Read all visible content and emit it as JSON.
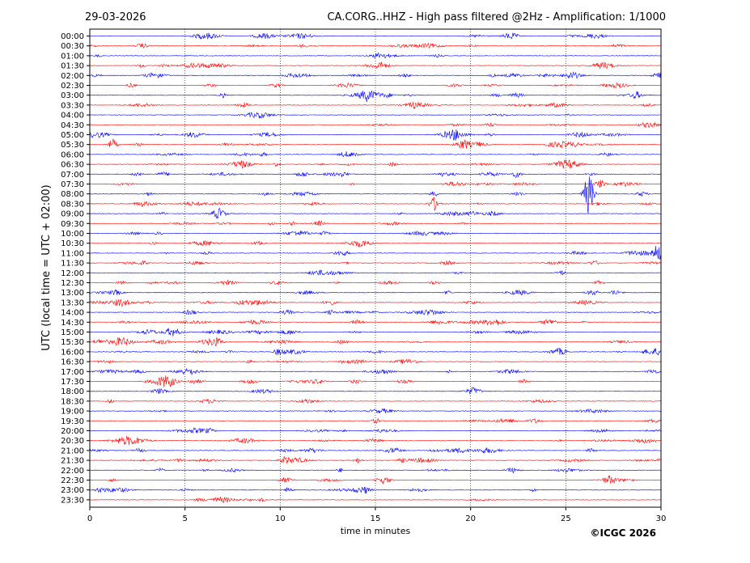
{
  "header": {
    "date": "29-03-2026",
    "title": "CA.CORG..HHZ - High pass filtered @2Hz - Amplification: 1/1000"
  },
  "copyright": "©ICGC 2026",
  "chart_data": {
    "type": "line",
    "title": "CA.CORG..HHZ - High pass filtered @2Hz - Amplification: 1/1000",
    "xlabel": "time in minutes",
    "ylabel": "UTC (local time = UTC + 02:00)",
    "xlim": [
      0,
      30
    ],
    "x_ticks": [
      "0",
      "5",
      "10",
      "15",
      "20",
      "25",
      "30"
    ],
    "rows": [
      "00:00",
      "00:30",
      "01:00",
      "01:30",
      "02:00",
      "02:30",
      "03:00",
      "03:30",
      "04:00",
      "04:30",
      "05:00",
      "05:30",
      "06:00",
      "06:30",
      "07:00",
      "07:30",
      "08:00",
      "08:30",
      "09:00",
      "09:30",
      "10:00",
      "10:30",
      "11:00",
      "11:30",
      "12:00",
      "12:30",
      "13:00",
      "13:30",
      "14:00",
      "14:30",
      "15:00",
      "15:30",
      "16:00",
      "16:30",
      "17:00",
      "17:30",
      "18:00",
      "18:30",
      "19:00",
      "19:30",
      "20:00",
      "20:30",
      "21:00",
      "21:30",
      "22:00",
      "22:30",
      "23:00",
      "23:30"
    ],
    "row_colors": [
      "#0000ff",
      "#ff0000"
    ],
    "grid": "vertical dotted at 5-minute intervals",
    "events": [
      {
        "row": "05:30",
        "minute": 1.2,
        "amplitude": 0.9
      },
      {
        "row": "05:30",
        "minute": 19.7,
        "amplitude": 0.5
      },
      {
        "row": "07:00",
        "minute": 22.4,
        "amplitude": 0.6
      },
      {
        "row": "07:30",
        "minute": 26.8,
        "amplitude": 0.7
      },
      {
        "row": "08:00",
        "minute": 26.2,
        "amplitude": 3.5
      },
      {
        "row": "08:30",
        "minute": 18.1,
        "amplitude": 1.2
      },
      {
        "row": "09:00",
        "minute": 6.8,
        "amplitude": 0.5
      },
      {
        "row": "11:00",
        "minute": 29.8,
        "amplitude": 1.5
      },
      {
        "row": "16:00",
        "minute": 9.9,
        "amplitude": 0.5
      }
    ]
  }
}
